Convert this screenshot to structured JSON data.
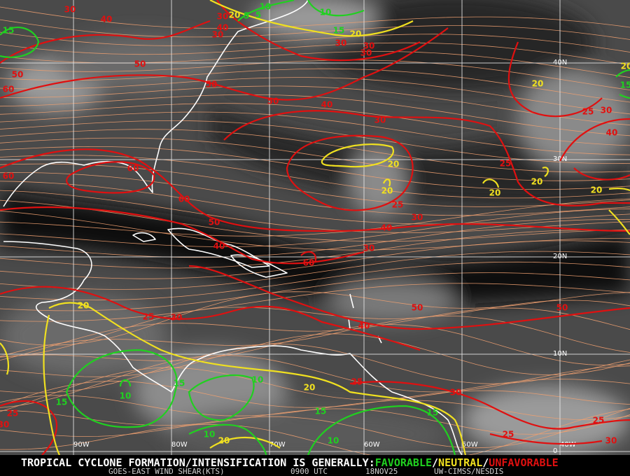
{
  "map": {
    "latitude_labels": [
      "40N",
      "30N",
      "20N",
      "10N",
      "0"
    ],
    "longitude_labels": [
      "90W",
      "80W",
      "70W",
      "60W",
      "50W",
      "40W"
    ],
    "contour_labels": {
      "unfavorable": [
        "30",
        "40",
        "30",
        "40",
        "30",
        "30",
        "30",
        "30",
        "50",
        "50",
        "60",
        "50",
        "50",
        "40",
        "30",
        "25",
        "30",
        "40",
        "25",
        "25",
        "30",
        "40",
        "30",
        "60",
        "60",
        "60",
        "50",
        "40",
        "60",
        "50",
        "40",
        "25",
        "30",
        "50",
        "25",
        "30",
        "25",
        "30",
        "25",
        "25",
        "30"
      ],
      "neutral": [
        "20",
        "20",
        "20",
        "20",
        "20",
        "20",
        "20",
        "20",
        "20",
        "20",
        "20",
        "20"
      ],
      "favorable": [
        "10",
        "10",
        "15",
        "15",
        "15",
        "5",
        "5",
        "15",
        "10",
        "10",
        "15",
        "15",
        "15",
        "10",
        "10"
      ]
    }
  },
  "footer": {
    "headline": "TROPICAL CYCLONE FORMATION/INTENSIFICATION IS GENERALLY:",
    "favorable": "FAVORABLE",
    "separator": "/",
    "neutral": "NEUTRAL",
    "unfavorable": "UNFAVORABLE",
    "product": "GOES-EAST WIND SHEAR(KTS)",
    "time": "0900 UTC",
    "date": "18NOV25",
    "credit": "UW-CIMSS/NESDIS"
  }
}
